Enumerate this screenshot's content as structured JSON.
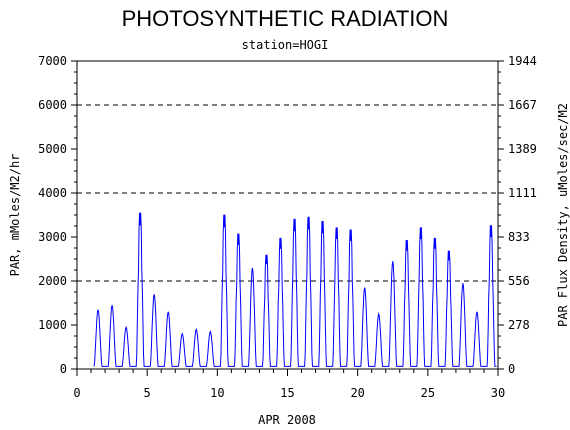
{
  "chart_data": {
    "type": "line",
    "title": "PHOTOSYNTHETIC RADIATION",
    "subtitle": "station=HOGI",
    "xlabel": "APR 2008",
    "ylabel": "PAR, mMoles/M2/hr",
    "y2label": "PAR Flux Density, uMoles/sec/M2",
    "xlim": [
      0,
      30
    ],
    "ylim": [
      0,
      7000
    ],
    "x_ticks": [
      0,
      5,
      10,
      15,
      20,
      25,
      30
    ],
    "y_ticks": [
      0,
      1000,
      2000,
      3000,
      4000,
      5000,
      6000,
      7000
    ],
    "y2_ticks": [
      "0",
      "278",
      "556",
      "833",
      "1111",
      "1389",
      "1667",
      "1944"
    ],
    "grid_lines_y": [
      2000,
      4000,
      6000
    ],
    "series": [
      {
        "color": "#0000ff",
        "daily_peaks": [
          {
            "day": 1,
            "peak": 1350
          },
          {
            "day": 2,
            "peak": 1450
          },
          {
            "day": 3,
            "peak": 950
          },
          {
            "day": 4,
            "peak": 3700
          },
          {
            "day": 5,
            "peak": 1700
          },
          {
            "day": 6,
            "peak": 1300
          },
          {
            "day": 7,
            "peak": 800
          },
          {
            "day": 8,
            "peak": 900
          },
          {
            "day": 9,
            "peak": 850
          },
          {
            "day": 10,
            "peak": 3650
          },
          {
            "day": 11,
            "peak": 3200
          },
          {
            "day": 12,
            "peak": 2300
          },
          {
            "day": 13,
            "peak": 2700
          },
          {
            "day": 14,
            "peak": 3100
          },
          {
            "day": 15,
            "peak": 3550
          },
          {
            "day": 16,
            "peak": 3600
          },
          {
            "day": 17,
            "peak": 3500
          },
          {
            "day": 18,
            "peak": 3350
          },
          {
            "day": 19,
            "peak": 3300
          },
          {
            "day": 20,
            "peak": 1850
          },
          {
            "day": 21,
            "peak": 1250
          },
          {
            "day": 22,
            "peak": 2450
          },
          {
            "day": 23,
            "peak": 3050
          },
          {
            "day": 24,
            "peak": 3350
          },
          {
            "day": 25,
            "peak": 3100
          },
          {
            "day": 26,
            "peak": 2800
          },
          {
            "day": 27,
            "peak": 1950
          },
          {
            "day": 28,
            "peak": 1300
          },
          {
            "day": 29,
            "peak": 3400
          }
        ]
      }
    ]
  }
}
